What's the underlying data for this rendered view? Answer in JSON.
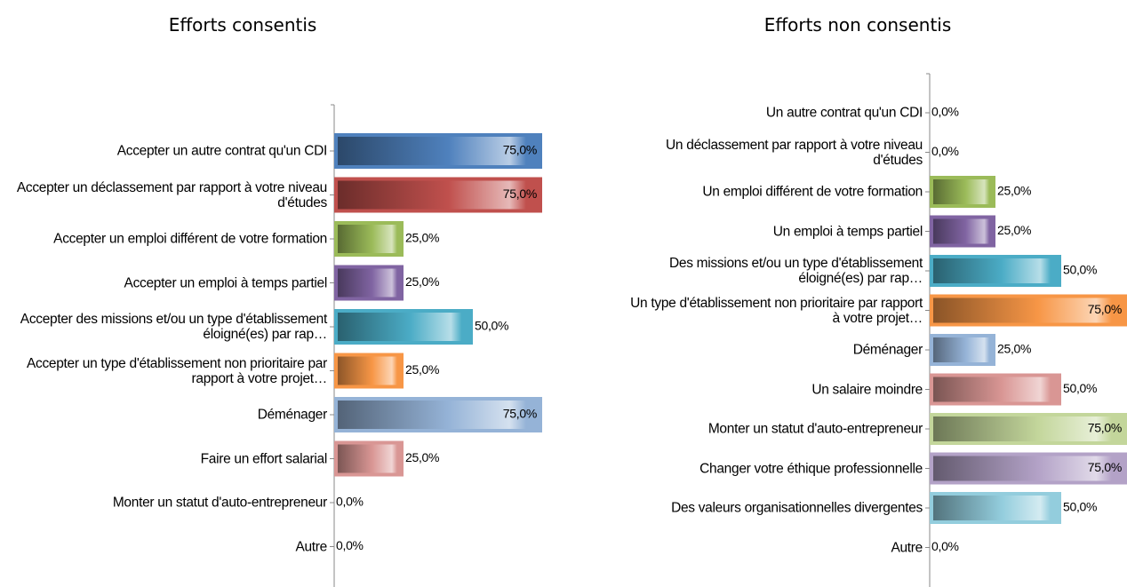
{
  "chart_data": [
    {
      "type": "bar",
      "orientation": "horizontal",
      "title": "Efforts consentis",
      "categories": [
        "Accepter un autre contrat qu'un CDI",
        "Accepter un déclassement par rapport à votre niveau d'études",
        "Accepter un emploi différent de votre formation",
        "Accepter un emploi à temps partiel",
        "Accepter des missions et/ou un type d'établissement éloigné(es) par rap…",
        "Accepter un type d'établissement non prioritaire par rapport à votre projet…",
        "Déménager",
        "Faire un effort salarial",
        "Monter un statut d'auto-entrepreneur",
        "Autre"
      ],
      "values": [
        75,
        75,
        25,
        25,
        50,
        25,
        75,
        25,
        0,
        0
      ],
      "value_labels": [
        "75,0%",
        "75,0%",
        "25,0%",
        "25,0%",
        "50,0%",
        "25,0%",
        "75,0%",
        "25,0%",
        "0,0%",
        "0,0%"
      ],
      "colors": [
        "#4f81bd",
        "#c0504d",
        "#9bbb59",
        "#8064a2",
        "#4bacc6",
        "#f79646",
        "#95b3d7",
        "#d99694",
        "#c3d69b",
        "#b3a2c7"
      ],
      "xlim": [
        0,
        75
      ]
    },
    {
      "type": "bar",
      "orientation": "horizontal",
      "title": "Efforts non consentis",
      "categories": [
        "Un autre contrat qu'un CDI",
        "Un déclassement par rapport à votre niveau d'études",
        "Un emploi différent de votre formation",
        "Un emploi à temps partiel",
        "Des missions et/ou un type d'établissement éloigné(es) par rap…",
        "Un type d'établissement non prioritaire par rapport à votre projet…",
        "Déménager",
        "Un salaire moindre",
        "Monter un statut d'auto-entrepreneur",
        "Changer votre éthique professionnelle",
        "Des valeurs organisationnelles divergentes",
        "Autre"
      ],
      "values": [
        0,
        0,
        25,
        25,
        50,
        75,
        25,
        50,
        75,
        75,
        50,
        0
      ],
      "value_labels": [
        "0,0%",
        "0,0%",
        "25,0%",
        "25,0%",
        "50,0%",
        "75,0%",
        "25,0%",
        "50,0%",
        "75,0%",
        "75,0%",
        "50,0%",
        "0,0%"
      ],
      "colors": [
        "#4f81bd",
        "#c0504d",
        "#9bbb59",
        "#8064a2",
        "#4bacc6",
        "#f79646",
        "#95b3d7",
        "#d99694",
        "#c3d69b",
        "#b3a2c7",
        "#93cddd",
        "#fac090"
      ],
      "xlim": [
        0,
        75
      ]
    }
  ]
}
